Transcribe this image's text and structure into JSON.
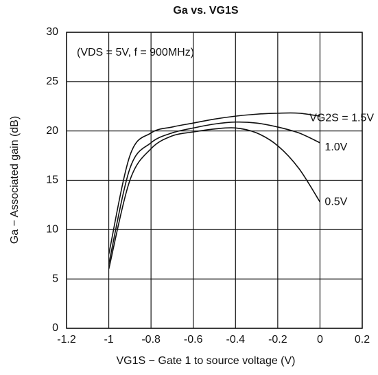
{
  "chart_data": {
    "type": "line",
    "title": "Ga vs. VG1S",
    "annotation": "(VDS = 5V, f = 900MHz)",
    "xlabel": "VG1S − Gate 1 to source voltage   (V)",
    "ylabel": "Ga − Associated gain   (dB)",
    "x": [
      -1,
      -0.9,
      -0.8,
      -0.7,
      -0.6,
      -0.5,
      -0.4,
      -0.3,
      -0.2,
      -0.1,
      0
    ],
    "series": [
      {
        "name": "VG2S = 1.5V",
        "color": "#111111",
        "values": [
          7.5,
          17.5,
          19.8,
          20.4,
          20.8,
          21.2,
          21.5,
          21.7,
          21.8,
          21.8,
          21.5
        ]
      },
      {
        "name": "1.0V",
        "color": "#111111",
        "values": [
          6.5,
          16.2,
          18.8,
          19.8,
          20.3,
          20.7,
          20.9,
          20.8,
          20.4,
          19.8,
          18.8
        ]
      },
      {
        "name": "0.5V",
        "color": "#111111",
        "values": [
          6,
          15,
          18.2,
          19.5,
          19.9,
          20.2,
          20.3,
          19.8,
          18.5,
          16.2,
          12.8
        ]
      }
    ],
    "xlim": [
      -1.2,
      0.2
    ],
    "xticks": [
      -1.2,
      -1,
      -0.8,
      -0.6,
      -0.4,
      -0.2,
      0,
      0.2
    ],
    "ylim": [
      0,
      30
    ],
    "yticks": [
      0,
      5,
      10,
      15,
      20,
      25,
      30
    ],
    "grid": true
  }
}
